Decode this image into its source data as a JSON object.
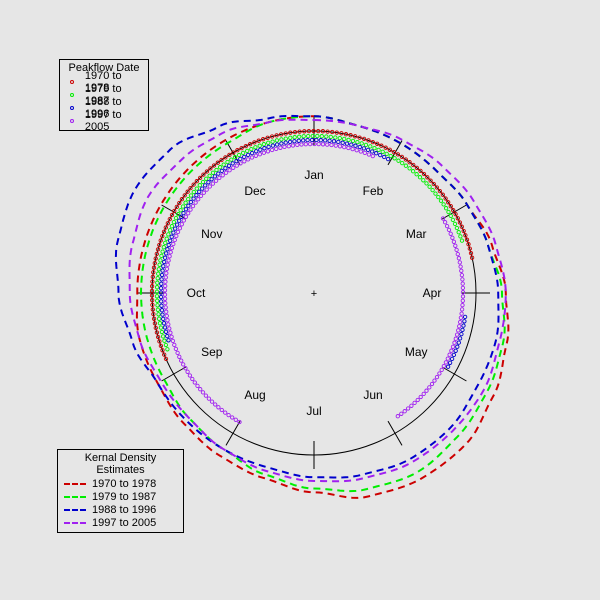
{
  "chart_data": {
    "type": "scatter",
    "subtype": "circular",
    "month_labels": [
      "Jan",
      "Feb",
      "Mar",
      "Apr",
      "May",
      "Jun",
      "Jul",
      "Aug",
      "Sep",
      "Oct",
      "Nov",
      "Dec"
    ],
    "center_marker": "+",
    "points_legend": {
      "title": "Peakflow Date",
      "entries": [
        "1970 to 1978",
        "1979 to 1987",
        "1988 to 1996",
        "1997 to 2005"
      ]
    },
    "density_legend": {
      "title": "Kernal Density Estimates",
      "entries": [
        "1970 to 1978",
        "1979 to 1987",
        "1988 to 1996",
        "1997 to 2005"
      ]
    },
    "colors": [
      "#cc0000",
      "#00ee00",
      "#0000cc",
      "#a020f0"
    ],
    "point_angle_ranges_months": [
      [
        [
          8.2,
          14.6
        ]
      ],
      [
        [
          8.3,
          14.4
        ]
      ],
      [
        [
          8.4,
          13.0
        ],
        [
          15.3,
          16.0
        ]
      ],
      [
        [
          7.0,
          12.8
        ],
        [
          14.0,
          16.9
        ]
      ]
    ],
    "density_curves": [
      [
        0.47,
        0.46,
        0.46,
        0.46,
        0.47,
        0.49,
        0.51,
        0.53,
        0.55,
        0.57,
        0.57,
        0.56,
        0.53,
        0.51,
        0.5,
        0.49,
        0.48,
        0.48,
        0.47,
        0.47,
        0.47,
        0.47,
        0.47,
        0.47
      ],
      [
        0.47,
        0.46,
        0.46,
        0.46,
        0.47,
        0.48,
        0.5,
        0.52,
        0.53,
        0.54,
        0.55,
        0.54,
        0.52,
        0.5,
        0.48,
        0.47,
        0.46,
        0.46,
        0.46,
        0.46,
        0.46,
        0.46,
        0.46,
        0.47
      ],
      [
        0.47,
        0.46,
        0.46,
        0.46,
        0.47,
        0.48,
        0.49,
        0.5,
        0.5,
        0.51,
        0.51,
        0.5,
        0.49,
        0.48,
        0.48,
        0.48,
        0.48,
        0.5,
        0.52,
        0.54,
        0.55,
        0.54,
        0.51,
        0.48
      ],
      [
        0.46,
        0.46,
        0.47,
        0.48,
        0.49,
        0.5,
        0.51,
        0.51,
        0.52,
        0.52,
        0.52,
        0.51,
        0.5,
        0.49,
        0.48,
        0.47,
        0.47,
        0.48,
        0.49,
        0.5,
        0.51,
        0.5,
        0.49,
        0.47
      ]
    ]
  }
}
